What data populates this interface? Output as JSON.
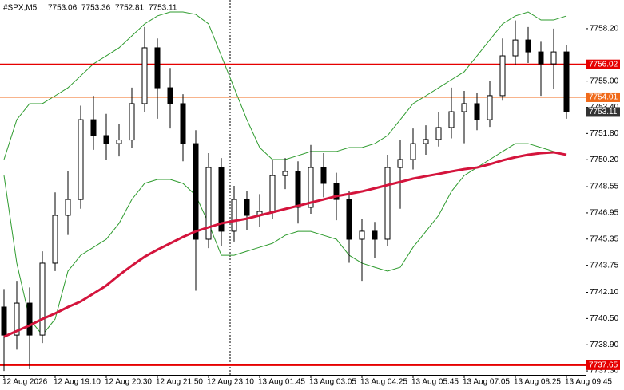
{
  "chart_data": {
    "type": "candlestick",
    "symbol": "#SPX,M5",
    "ohlc": [
      7753.06,
      7753.36,
      7752.81,
      7753.11
    ],
    "categories": [
      "12 Aug 2026",
      null,
      null,
      null,
      "12 Aug 19:10",
      null,
      null,
      null,
      "12 Aug 20:30",
      null,
      null,
      null,
      "12 Aug 21:50",
      null,
      null,
      null,
      "12 Aug 23:10",
      null,
      null,
      null,
      "13 Aug 01:45",
      null,
      null,
      null,
      "13 Aug 03:05",
      null,
      null,
      null,
      "13 Aug 04:25",
      null,
      null,
      null,
      "13 Aug 05:45",
      null,
      null,
      null,
      "13 Aug 07:05",
      null,
      null,
      null,
      "13 Aug 08:25",
      null,
      null,
      null,
      "13 Aug 09:45"
    ],
    "open": [
      7741.2,
      7739.49,
      7741.44,
      7739.49,
      7743.88,
      7746.8,
      7747.77,
      7752.64,
      7751.67,
      7751.18,
      7751.4,
      7753.62,
      7757.03,
      7754.59,
      7753.62,
      7751.18,
      7745.34,
      7749.72,
      7745.83,
      7747.77,
      7746.8,
      7747.04,
      7749.23,
      7749.48,
      7747.29,
      7749.72,
      7748.75,
      7747.77,
      7745.34,
      7745.83,
      7745.34,
      7749.72,
      7750.21,
      7751.18,
      7751.43,
      7752.16,
      7753.13,
      7753.62,
      7752.64,
      7754.11,
      7756.54,
      7757.51,
      7756.78,
      7756.05,
      7756.78
    ],
    "high": [
      7742.3,
      7742.8,
      7742.4,
      7744.6,
      7748.2,
      7749.5,
      7753.5,
      7754.1,
      7753.0,
      7752.4,
      7754.6,
      7758.3,
      7757.6,
      7755.8,
      7754.2,
      7752.0,
      7750.6,
      7750.3,
      7748.6,
      7748.3,
      7748.1,
      7750.2,
      7750.3,
      7750.1,
      7751.1,
      7750.6,
      7749.4,
      7748.3,
      7746.6,
      7746.4,
      7750.5,
      7751.4,
      7752.1,
      7752.3,
      7753.1,
      7754.6,
      7754.4,
      7754.3,
      7755.0,
      7757.6,
      7758.7,
      7758.3,
      7757.4,
      7758.2,
      7757.2
    ],
    "low": [
      7737.3,
      7738.6,
      7737.4,
      7739.0,
      7743.4,
      7745.6,
      7747.2,
      7750.8,
      7750.2,
      7750.4,
      7750.9,
      7753.1,
      7752.7,
      7752.1,
      7750.1,
      7742.2,
      7744.8,
      7744.9,
      7745.2,
      7745.9,
      7746.1,
      7746.6,
      7748.4,
      7746.3,
      7746.9,
      7747.9,
      7746.5,
      7743.9,
      7742.8,
      7744.2,
      7744.9,
      7747.2,
      7749.6,
      7750.5,
      7751.0,
      7751.5,
      7751.2,
      7752.0,
      7752.2,
      7753.8,
      7756.0,
      7756.1,
      7754.1,
      7754.5,
      7752.7
    ],
    "close": [
      7739.49,
      7741.44,
      7739.49,
      7743.88,
      7746.8,
      7747.77,
      7752.64,
      7751.67,
      7751.18,
      7751.4,
      7753.62,
      7757.03,
      7754.59,
      7753.62,
      7751.18,
      7745.34,
      7749.72,
      7745.83,
      7747.77,
      7746.8,
      7747.04,
      7749.23,
      7749.48,
      7747.29,
      7749.72,
      7748.75,
      7747.77,
      7745.34,
      7745.83,
      7745.34,
      7749.72,
      7750.21,
      7751.18,
      7751.43,
      7752.16,
      7753.13,
      7753.62,
      7752.64,
      7754.11,
      7756.54,
      7757.51,
      7756.78,
      7756.05,
      7756.78,
      7753.11
    ],
    "ma": {
      "color": "#d4143c",
      "values": [
        7739.39,
        7739.74,
        7740.08,
        7740.47,
        7740.81,
        7741.2,
        7741.54,
        7742.02,
        7742.51,
        7743.15,
        7743.73,
        7744.27,
        7744.7,
        7745.09,
        7745.48,
        7745.82,
        7746.07,
        7746.31,
        7746.46,
        7746.6,
        7746.8,
        7746.99,
        7747.19,
        7747.38,
        7747.58,
        7747.77,
        7747.97,
        7748.11,
        7748.26,
        7748.45,
        7748.65,
        7748.84,
        7749.04,
        7749.19,
        7749.33,
        7749.48,
        7749.62,
        7749.72,
        7749.92,
        7750.16,
        7750.35,
        7750.5,
        7750.6,
        7750.65,
        7750.5
      ]
    },
    "bands": {
      "color": "#2e9b2e",
      "upper": [
        7750.21,
        7752.64,
        7753.62,
        7753.62,
        7754.1,
        7754.59,
        7755.32,
        7756.05,
        7756.54,
        7757.03,
        7757.76,
        7758.49,
        7758.98,
        7759.22,
        7759.22,
        7759.07,
        7758.49,
        7756.54,
        7754.59,
        7752.64,
        7750.94,
        7750.21,
        7750.21,
        7750.45,
        7750.7,
        7750.7,
        7750.7,
        7750.94,
        7750.94,
        7751.18,
        7751.67,
        7752.64,
        7753.62,
        7754.1,
        7754.59,
        7755.08,
        7755.57,
        7756.54,
        7757.51,
        7758.49,
        7758.98,
        7759.22,
        7758.73,
        7758.73,
        7758.98
      ],
      "lower": [
        7749.23,
        7743.88,
        7740.47,
        7739.49,
        7740.47,
        7743.39,
        7744.36,
        7744.85,
        7745.34,
        7746.31,
        7747.77,
        7748.75,
        7748.99,
        7748.99,
        7748.75,
        7748.02,
        7746.31,
        7744.36,
        7744.36,
        7744.61,
        7744.85,
        7745.09,
        7745.58,
        7745.82,
        7745.82,
        7745.58,
        7745.34,
        7744.36,
        7743.88,
        7743.63,
        7743.39,
        7743.63,
        7744.85,
        7745.82,
        7746.8,
        7748.26,
        7749.23,
        7749.72,
        7750.21,
        7750.7,
        7751.18,
        7751.18,
        7750.94,
        7750.7,
        7750.45
      ]
    },
    "levels": [
      {
        "value": 7756.02,
        "color": "#e60000"
      },
      {
        "value": 7754.01,
        "color": "#f06a1a"
      },
      {
        "value": 7737.65,
        "color": "#e60000"
      }
    ],
    "last_price": {
      "value": 7753.11,
      "color": "#333333"
    },
    "ylim": [
      7737.06,
      7759.95
    ],
    "yticks": [
      {
        "value": 7758.2,
        "label": "7758.20"
      },
      {
        "value": 7755,
        "label": "7755.00"
      },
      {
        "value": 7753.4,
        "label": "7753.40"
      },
      {
        "value": 7751.8,
        "label": "7751.80"
      },
      {
        "value": 7750.2,
        "label": "7750.20"
      },
      7748.55,
      7746.95,
      7745.35,
      7743.75,
      {
        "value": 7742.1,
        "label": "7742.10"
      },
      {
        "value": 7740.5,
        "label": "7740.50"
      },
      {
        "value": 7738.9,
        "label": "7738.90"
      },
      {
        "value": 7737.3,
        "label": "7737.30"
      }
    ]
  }
}
